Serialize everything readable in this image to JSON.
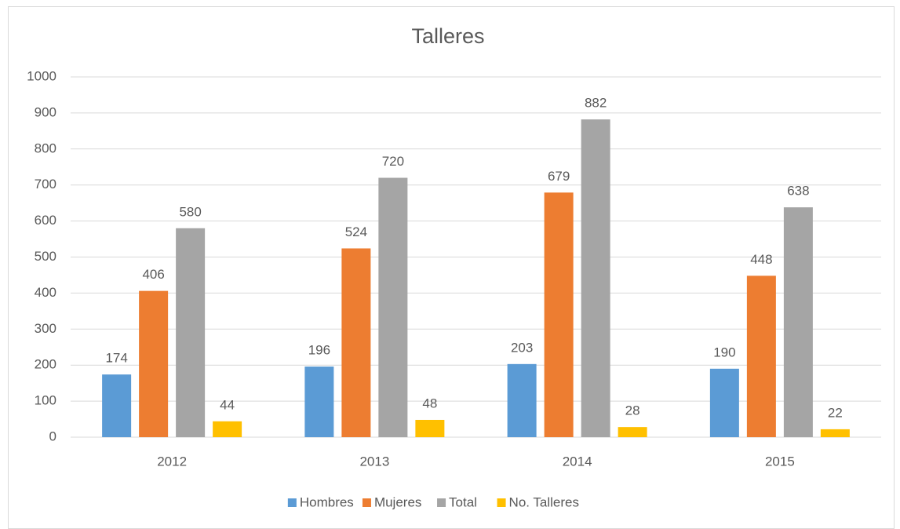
{
  "chart_data": {
    "type": "bar",
    "title": "Talleres",
    "categories": [
      "2012",
      "2013",
      "2014",
      "2015"
    ],
    "series": [
      {
        "name": "Hombres",
        "color": "#5b9bd5",
        "values": [
          174,
          196,
          203,
          190
        ]
      },
      {
        "name": "Mujeres",
        "color": "#ed7d31",
        "values": [
          406,
          524,
          679,
          448
        ]
      },
      {
        "name": "Total",
        "color": "#a5a5a5",
        "values": [
          580,
          720,
          882,
          638
        ]
      },
      {
        "name": "No. Talleres",
        "color": "#ffc000",
        "values": [
          44,
          48,
          28,
          22
        ]
      }
    ],
    "ylim": [
      0,
      1000
    ],
    "yticks": [
      0,
      100,
      200,
      300,
      400,
      500,
      600,
      700,
      800,
      900,
      1000
    ],
    "grid": true,
    "legend": "bottom"
  }
}
